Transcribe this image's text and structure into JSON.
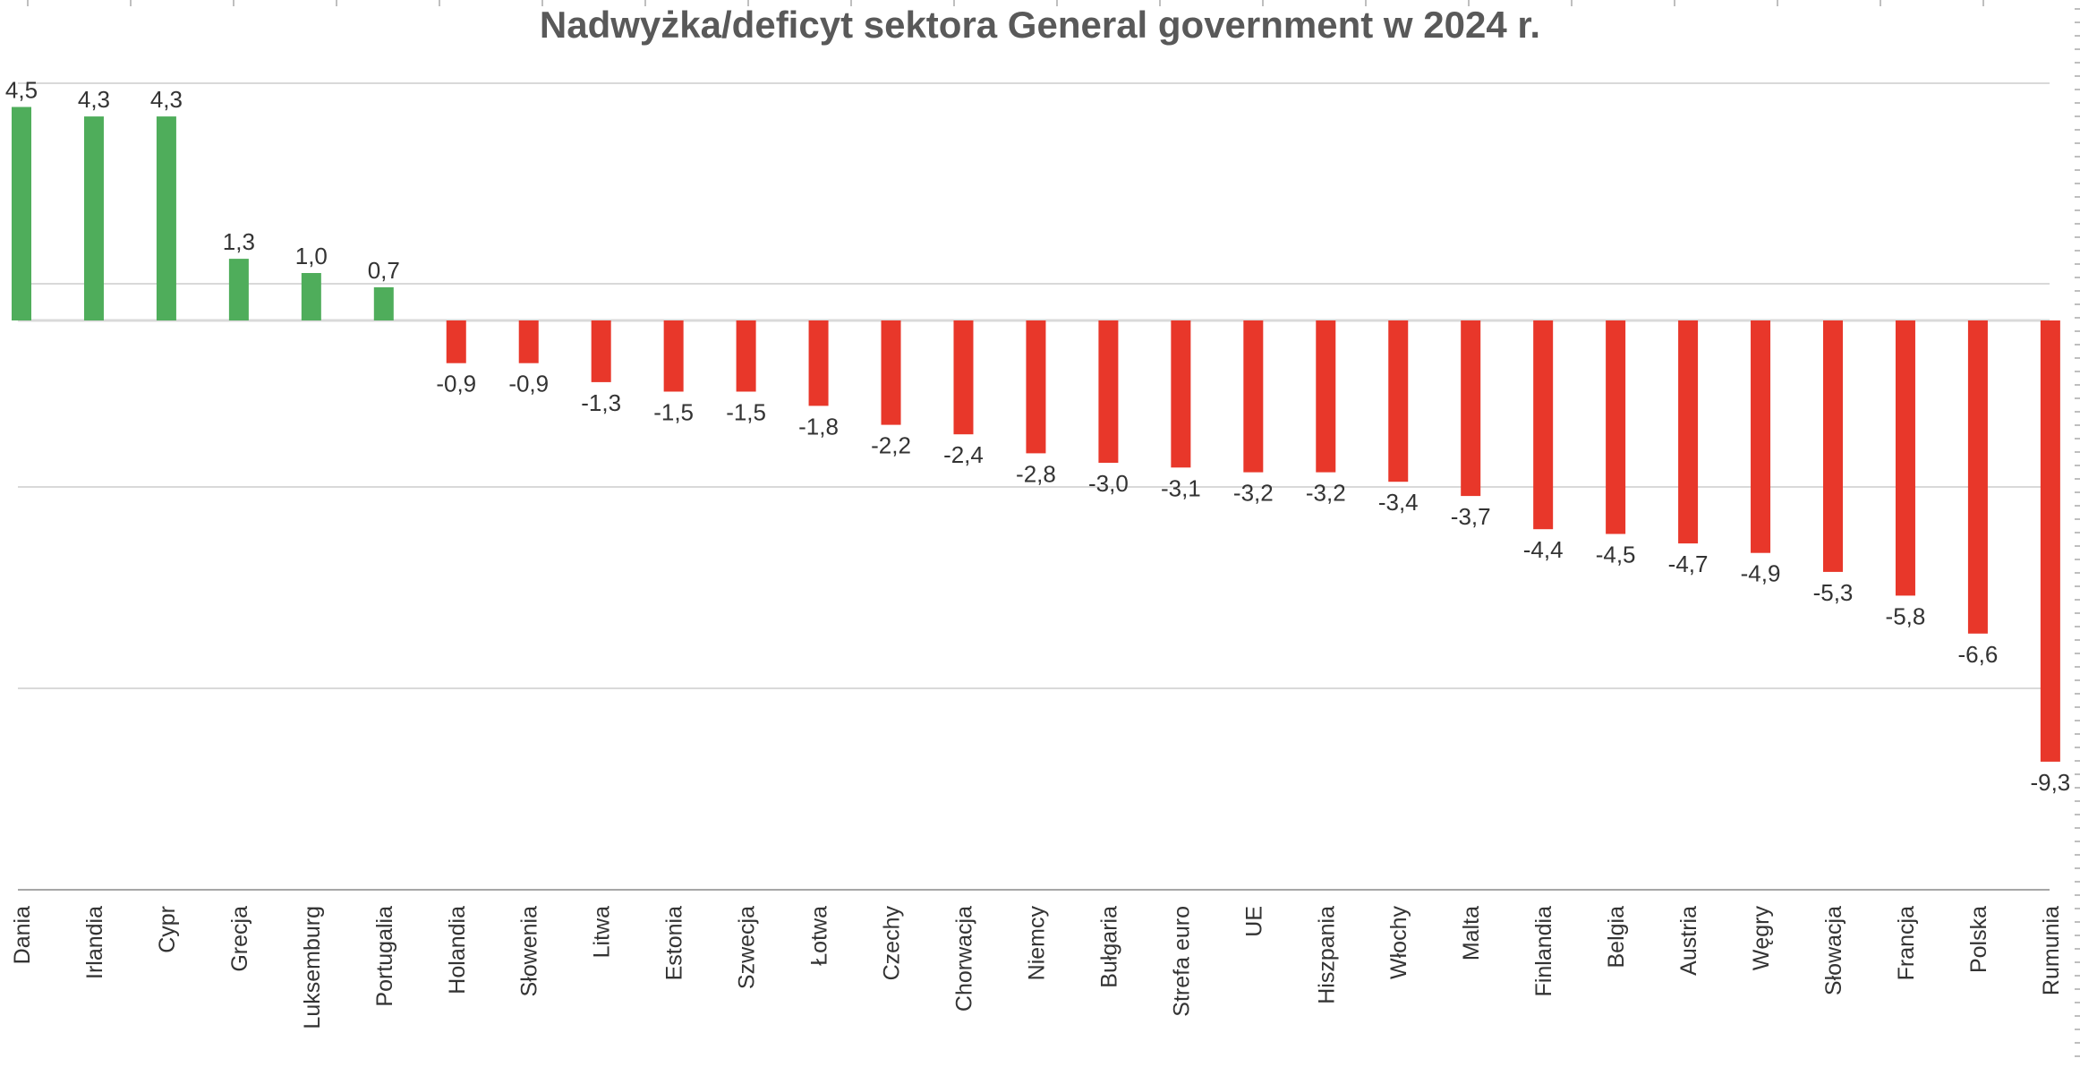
{
  "chart_data": {
    "type": "bar",
    "title": "Nadwyżka/deficyt sektora General government w 2024 r.",
    "categories": [
      "Dania",
      "Irlandia",
      "Cypr",
      "Grecja",
      "Luksemburg",
      "Portugalia",
      "Holandia",
      "Słowenia",
      "Litwa",
      "Estonia",
      "Szwecja",
      "Łotwa",
      "Czechy",
      "Chorwacja",
      "Niemcy",
      "Bułgaria",
      "Strefa euro",
      "UE",
      "Hiszpania",
      "Włochy",
      "Malta",
      "Finlandia",
      "Belgia",
      "Austria",
      "Węgry",
      "Słowacja",
      "Francja",
      "Polska",
      "Rumunia"
    ],
    "values": [
      4.5,
      4.3,
      4.3,
      1.3,
      1.0,
      0.7,
      -0.9,
      -0.9,
      -1.3,
      -1.5,
      -1.5,
      -1.8,
      -2.2,
      -2.4,
      -2.8,
      -3.0,
      -3.1,
      -3.2,
      -3.2,
      -3.4,
      -3.7,
      -4.4,
      -4.5,
      -4.7,
      -4.9,
      -5.3,
      -5.8,
      -6.6,
      -9.3
    ],
    "data_labels": [
      "4,5",
      "4,3",
      "4,3",
      "1,3",
      "1,0",
      "0,7",
      "-0,9",
      "-0,9",
      "-1,3",
      "-1,5",
      "-1,5",
      "-1,8",
      "-2,2",
      "-2,4",
      "-2,8",
      "-3,0",
      "-3,1",
      "-3,2",
      "-3,2",
      "-3,4",
      "-3,7",
      "-4,4",
      "-4,5",
      "-4,7",
      "-4,9",
      "-5,3",
      "-5,8",
      "-6,6",
      "-9,3"
    ],
    "xlabel": "",
    "ylabel": "",
    "grid": true,
    "legend": "none",
    "colors": {
      "positive": "#4fad5b",
      "negative": "#e8372a",
      "grid": "#d9d9d9",
      "title": "#595959"
    }
  }
}
